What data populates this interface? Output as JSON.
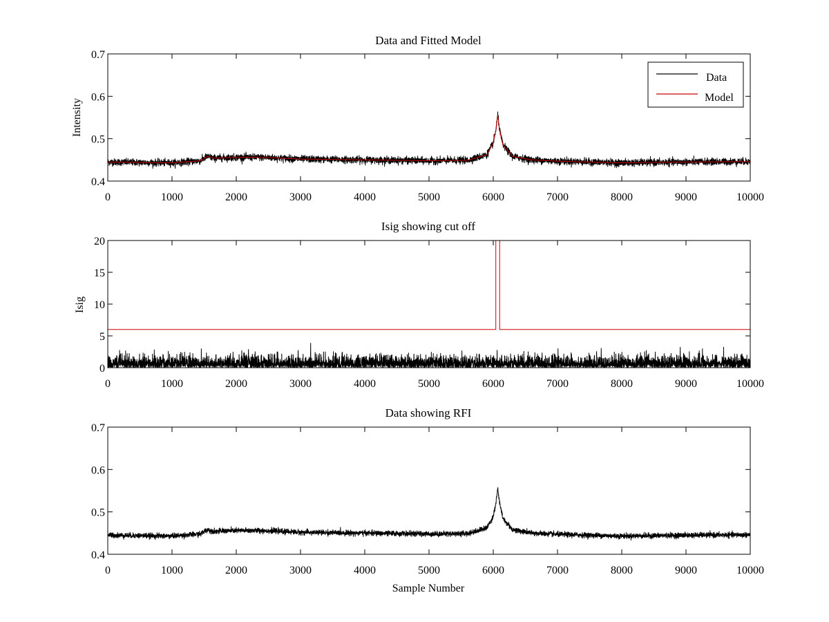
{
  "chart_data": [
    {
      "type": "line",
      "title": "Data and Fitted Model",
      "xlabel": "",
      "ylabel": "Intensity",
      "xlim": [
        0,
        10000
      ],
      "ylim": [
        0.4,
        0.7
      ],
      "xticks": [
        0,
        1000,
        2000,
        3000,
        4000,
        5000,
        6000,
        7000,
        8000,
        9000,
        10000
      ],
      "yticks": [
        0.4,
        0.5,
        0.6,
        0.7
      ],
      "grid": false,
      "legend": {
        "placement": "top-right",
        "entries": [
          "Data",
          "Model"
        ]
      },
      "series": [
        {
          "name": "Data",
          "color": "#000000",
          "kind": "noisy",
          "noise": 0.004,
          "x": [
            0,
            1000,
            1450,
            1520,
            1560,
            1650,
            2000,
            2400,
            3000,
            4000,
            5000,
            5600,
            5900,
            6000,
            6040,
            6070,
            6100,
            6150,
            6300,
            6600,
            7000,
            8000,
            9000,
            10000
          ],
          "y": [
            0.445,
            0.443,
            0.448,
            0.456,
            0.458,
            0.454,
            0.456,
            0.456,
            0.452,
            0.45,
            0.448,
            0.449,
            0.462,
            0.49,
            0.52,
            0.555,
            0.52,
            0.485,
            0.458,
            0.45,
            0.447,
            0.443,
            0.445,
            0.446
          ]
        },
        {
          "name": "Model",
          "color": "#cc0000",
          "kind": "smooth",
          "x": [
            0,
            1000,
            1450,
            1520,
            1560,
            1650,
            2000,
            2400,
            3000,
            4000,
            5000,
            5600,
            5900,
            6000,
            6040,
            6070,
            6100,
            6150,
            6300,
            6600,
            7000,
            8000,
            9000,
            10000
          ],
          "y": [
            0.445,
            0.443,
            0.448,
            0.456,
            0.458,
            0.454,
            0.456,
            0.456,
            0.452,
            0.45,
            0.448,
            0.449,
            0.462,
            0.49,
            0.52,
            0.555,
            0.52,
            0.485,
            0.458,
            0.45,
            0.447,
            0.443,
            0.445,
            0.446
          ]
        }
      ]
    },
    {
      "type": "line",
      "title": "Isig showing cut off",
      "xlabel": "",
      "ylabel": "Isig",
      "xlim": [
        0,
        10000
      ],
      "ylim": [
        0,
        20
      ],
      "xticks": [
        0,
        1000,
        2000,
        3000,
        4000,
        5000,
        6000,
        7000,
        8000,
        9000,
        10000
      ],
      "yticks": [
        0,
        5,
        10,
        15,
        20
      ],
      "grid": false,
      "series": [
        {
          "name": "",
          "color": "#000000",
          "kind": "halfnoise",
          "noise": 0.9,
          "max": 4,
          "x": [
            0,
            10000
          ],
          "y": [
            0,
            0
          ]
        },
        {
          "name": "",
          "color": "#cc0000",
          "kind": "step",
          "x": [
            0,
            6040,
            6040,
            6100,
            6100,
            10000
          ],
          "y": [
            6,
            6,
            20,
            20,
            6,
            6
          ]
        }
      ]
    },
    {
      "type": "line",
      "title": "Data showing RFI",
      "xlabel": "Sample Number",
      "ylabel": "",
      "xlim": [
        0,
        10000
      ],
      "ylim": [
        0.4,
        0.7
      ],
      "xticks": [
        0,
        1000,
        2000,
        3000,
        4000,
        5000,
        6000,
        7000,
        8000,
        9000,
        10000
      ],
      "yticks": [
        0.4,
        0.5,
        0.6,
        0.7
      ],
      "grid": false,
      "series": [
        {
          "name": "",
          "color": "#000000",
          "kind": "noisy",
          "noise": 0.003,
          "x": [
            0,
            1000,
            1450,
            1520,
            1560,
            1650,
            2000,
            2400,
            3000,
            4000,
            5000,
            5600,
            5900,
            6000,
            6040,
            6070,
            6100,
            6150,
            6300,
            6600,
            7000,
            8000,
            9000,
            10000
          ],
          "y": [
            0.445,
            0.443,
            0.448,
            0.456,
            0.458,
            0.454,
            0.456,
            0.456,
            0.452,
            0.45,
            0.448,
            0.449,
            0.462,
            0.49,
            0.52,
            0.555,
            0.52,
            0.485,
            0.458,
            0.45,
            0.447,
            0.443,
            0.445,
            0.446
          ]
        }
      ]
    }
  ]
}
